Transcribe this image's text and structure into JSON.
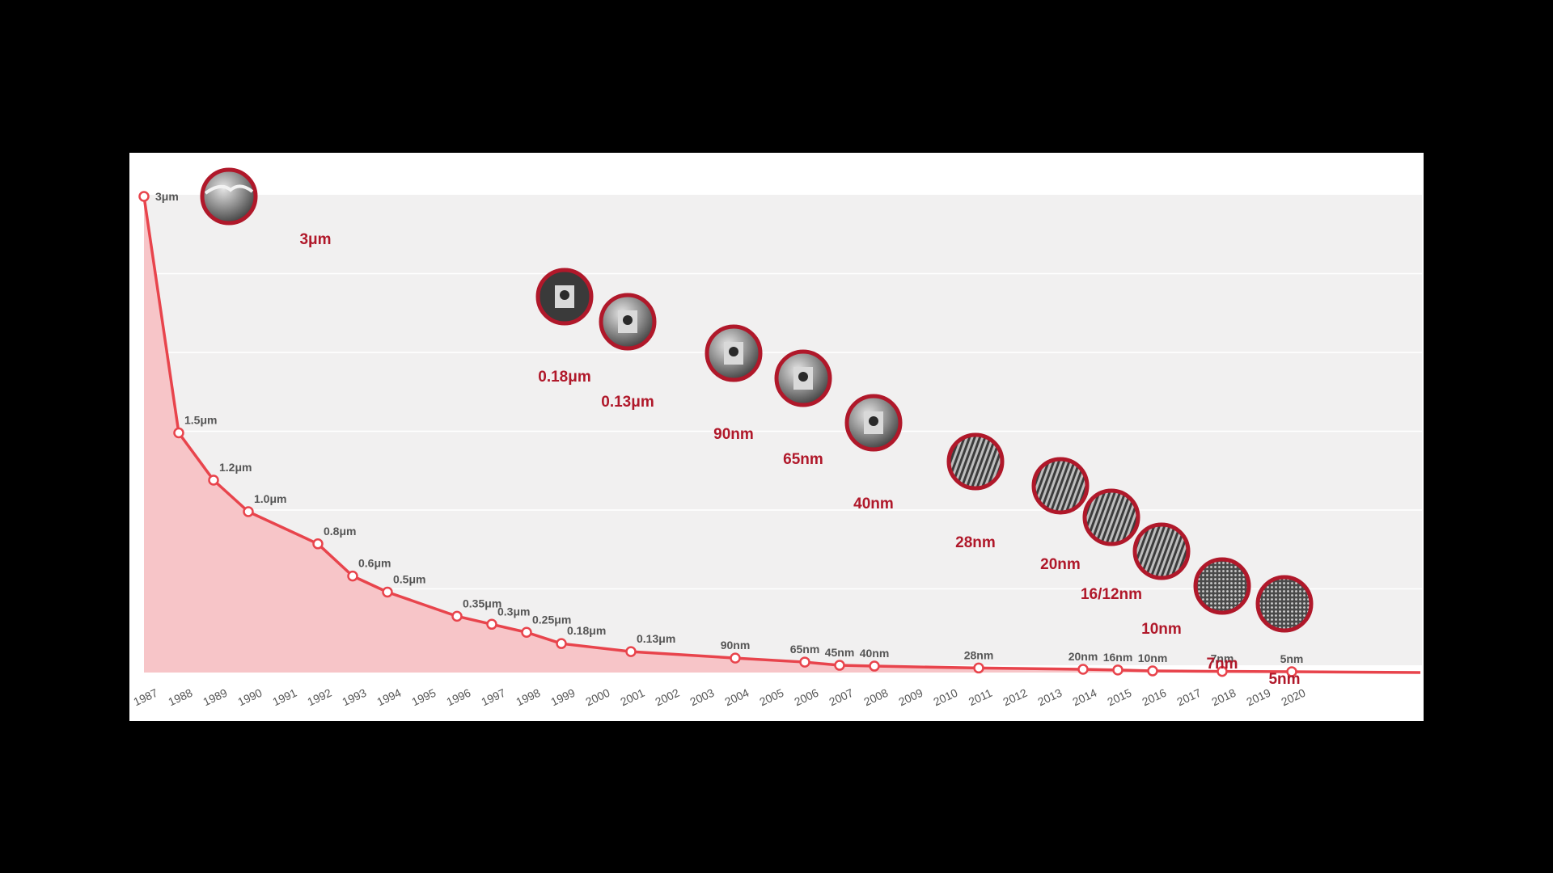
{
  "chart_data": {
    "type": "area",
    "title": "",
    "xlabel": "",
    "ylabel": "",
    "x_ticks": [
      "1987",
      "1988",
      "1989",
      "1990",
      "1991",
      "1992",
      "1993",
      "1994",
      "1995",
      "1996",
      "1997",
      "1998",
      "1999",
      "2000",
      "2001",
      "2002",
      "2003",
      "2004",
      "2005",
      "2006",
      "2007",
      "2008",
      "2009",
      "2010",
      "2011",
      "2012",
      "2013",
      "2014",
      "2015",
      "2016",
      "2017",
      "2018",
      "2019",
      "2020"
    ],
    "ylim": [
      0,
      3
    ],
    "grid": true,
    "series": [
      {
        "points": [
          {
            "year": 1987,
            "value": 3.0,
            "label": "3μm"
          },
          {
            "year": 1988,
            "value": 1.5,
            "label": "1.5μm"
          },
          {
            "year": 1989,
            "value": 1.2,
            "label": "1.2μm"
          },
          {
            "year": 1990,
            "value": 1.0,
            "label": "1.0μm"
          },
          {
            "year": 1992,
            "value": 0.8,
            "label": "0.8μm"
          },
          {
            "year": 1993,
            "value": 0.6,
            "label": "0.6μm"
          },
          {
            "year": 1994,
            "value": 0.5,
            "label": "0.5μm"
          },
          {
            "year": 1996,
            "value": 0.35,
            "label": "0.35μm"
          },
          {
            "year": 1997,
            "value": 0.3,
            "label": "0.3μm"
          },
          {
            "year": 1998,
            "value": 0.25,
            "label": "0.25μm"
          },
          {
            "year": 1999,
            "value": 0.18,
            "label": "0.18μm"
          },
          {
            "year": 2001,
            "value": 0.13,
            "label": "0.13μm"
          },
          {
            "year": 2004,
            "value": 0.09,
            "label": "90nm"
          },
          {
            "year": 2006,
            "value": 0.065,
            "label": "65nm"
          },
          {
            "year": 2007,
            "value": 0.045,
            "label": "45nm"
          },
          {
            "year": 2008,
            "value": 0.04,
            "label": "40nm"
          },
          {
            "year": 2011,
            "value": 0.028,
            "label": "28nm"
          },
          {
            "year": 2014,
            "value": 0.02,
            "label": "20nm"
          },
          {
            "year": 2015,
            "value": 0.016,
            "label": "16nm"
          },
          {
            "year": 2016,
            "value": 0.01,
            "label": "10nm"
          },
          {
            "year": 2018,
            "value": 0.007,
            "label": "7nm"
          },
          {
            "year": 2020,
            "value": 0.005,
            "label": "5nm"
          }
        ]
      }
    ],
    "nodes": [
      {
        "label": "3μm",
        "image": "sem-micrograph-3um"
      },
      {
        "label": "0.18μm",
        "image": "sem-micrograph-0.18um"
      },
      {
        "label": "0.13μm",
        "image": "sem-micrograph-0.13um"
      },
      {
        "label": "90nm",
        "image": "sem-micrograph-90nm"
      },
      {
        "label": "65nm",
        "image": "sem-micrograph-65nm"
      },
      {
        "label": "40nm",
        "image": "sem-micrograph-40nm"
      },
      {
        "label": "28nm",
        "image": "sem-micrograph-28nm"
      },
      {
        "label": "20nm",
        "image": "sem-micrograph-20nm"
      },
      {
        "label": "16/12nm",
        "image": "sem-micrograph-16-12nm"
      },
      {
        "label": "10nm",
        "image": "sem-micrograph-10nm"
      },
      {
        "label": "7nm",
        "image": "sem-micrograph-7nm"
      },
      {
        "label": "5nm",
        "image": "sem-micrograph-5nm"
      }
    ],
    "colors": {
      "line": "#e8444c",
      "area": "#f7c5c8",
      "plot_bg": "#f1f0f0",
      "node_ring": "#b0182a",
      "node_label": "#b0182a",
      "text": "#555555"
    }
  }
}
